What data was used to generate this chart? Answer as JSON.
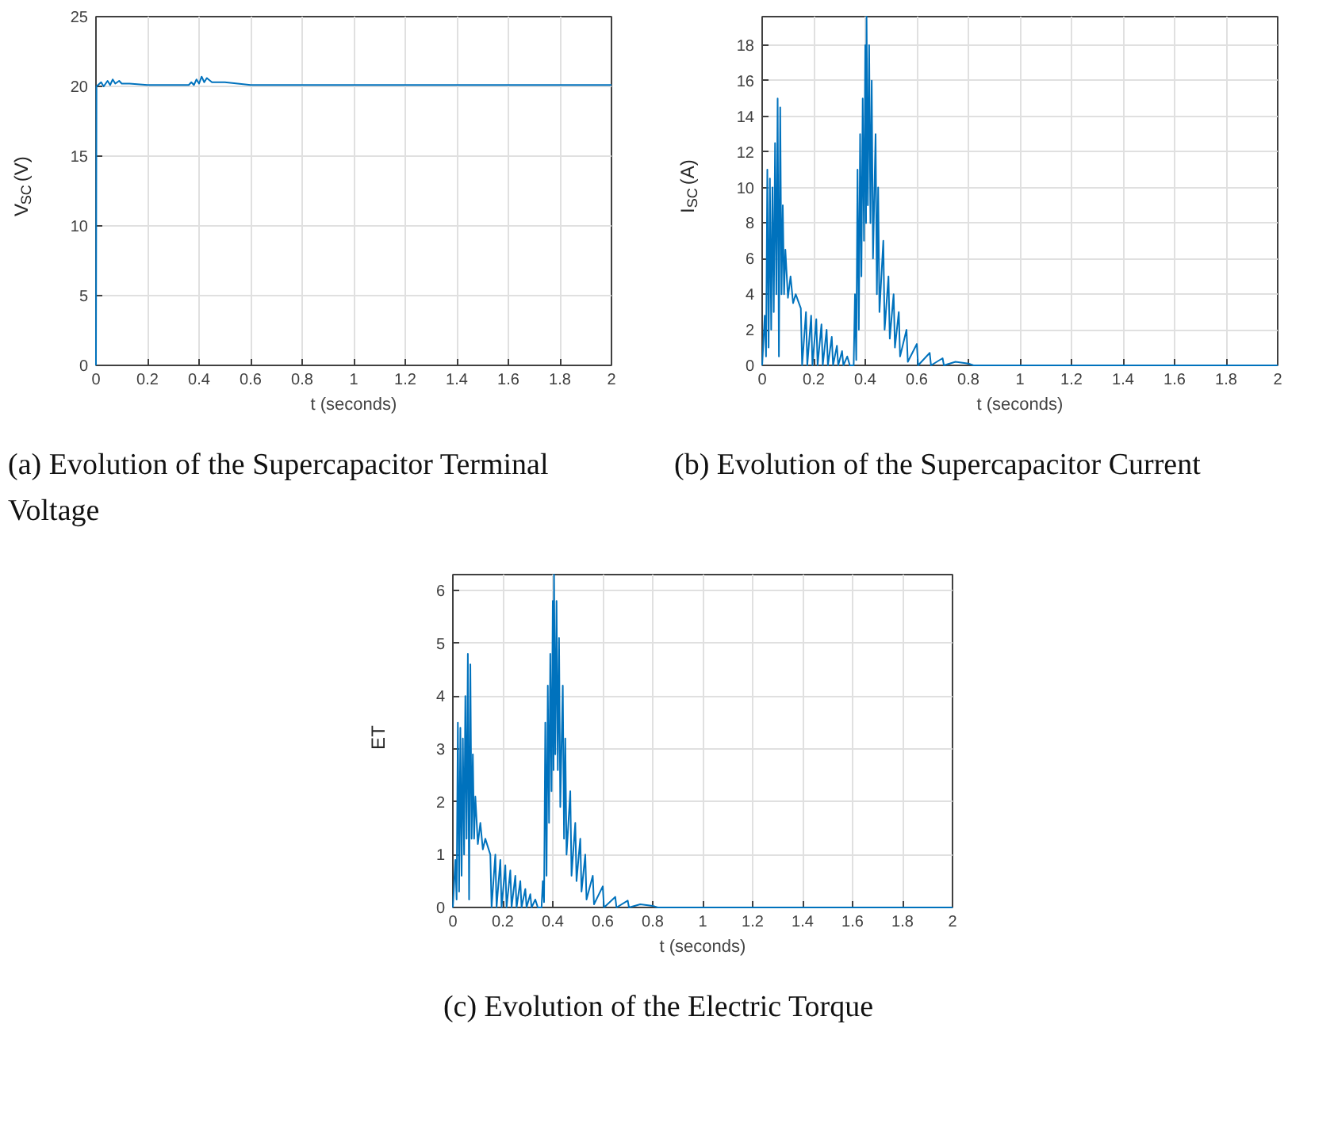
{
  "chart_data": [
    {
      "type": "line",
      "xlabel": "t (seconds)",
      "ylabel": "V$_{SC}$ (V)",
      "annotations": [
        "(a) Evolution of the Supercapacitor Terminal Voltage"
      ],
      "xlim": [
        0,
        2
      ],
      "ylim": [
        0,
        25
      ],
      "xticks": [
        0,
        0.2,
        0.4,
        0.6,
        0.8,
        1,
        1.2,
        1.4,
        1.6,
        1.8,
        2
      ],
      "yticks": [
        0,
        5,
        10,
        15,
        20,
        25
      ],
      "grid": true,
      "series": [
        {
          "color": "#0072bd",
          "x": [
            0,
            0.002,
            0.02,
            0.03,
            0.045,
            0.055,
            0.065,
            0.075,
            0.09,
            0.1,
            0.13,
            0.2,
            0.36,
            0.37,
            0.38,
            0.39,
            0.4,
            0.41,
            0.42,
            0.43,
            0.45,
            0.5,
            0.6,
            2
          ],
          "values": [
            0,
            20,
            20.3,
            20.0,
            20.4,
            20.1,
            20.5,
            20.2,
            20.4,
            20.2,
            20.2,
            20.1,
            20.1,
            20.3,
            20.1,
            20.5,
            20.2,
            20.7,
            20.3,
            20.6,
            20.3,
            20.3,
            20.1,
            20.1
          ]
        }
      ]
    },
    {
      "type": "line",
      "xlabel": "t (seconds)",
      "ylabel": "I$_{SC}$ (A)",
      "annotations": [
        "(b) Evolution of the Supercapacitor Current"
      ],
      "xlim": [
        0,
        2
      ],
      "ylim": [
        0,
        19.6
      ],
      "xticks": [
        0,
        0.2,
        0.4,
        0.6,
        0.8,
        1,
        1.2,
        1.4,
        1.6,
        1.8,
        2
      ],
      "yticks": [
        0,
        2,
        4,
        6,
        8,
        10,
        12,
        14,
        16,
        18
      ],
      "grid": true,
      "series": [
        {
          "color": "#0072bd",
          "x": [
            0,
            0.01,
            0.015,
            0.02,
            0.025,
            0.03,
            0.035,
            0.04,
            0.045,
            0.05,
            0.055,
            0.06,
            0.065,
            0.07,
            0.075,
            0.08,
            0.085,
            0.09,
            0.1,
            0.11,
            0.12,
            0.13,
            0.15,
            0.155,
            0.17,
            0.175,
            0.19,
            0.195,
            0.21,
            0.215,
            0.23,
            0.235,
            0.25,
            0.255,
            0.27,
            0.275,
            0.29,
            0.295,
            0.31,
            0.315,
            0.33,
            0.34,
            0.355,
            0.36,
            0.365,
            0.37,
            0.375,
            0.38,
            0.385,
            0.39,
            0.395,
            0.4,
            0.403,
            0.405,
            0.41,
            0.415,
            0.42,
            0.425,
            0.43,
            0.44,
            0.445,
            0.45,
            0.455,
            0.47,
            0.475,
            0.49,
            0.495,
            0.51,
            0.515,
            0.53,
            0.535,
            0.56,
            0.565,
            0.6,
            0.605,
            0.65,
            0.655,
            0.7,
            0.705,
            0.75,
            0.8,
            0.82,
            2
          ],
          "values": [
            0,
            2.8,
            0.5,
            11,
            1,
            10.5,
            2,
            10,
            3,
            12.5,
            4,
            15,
            0.5,
            14.5,
            4,
            9,
            4,
            6.5,
            3.8,
            5,
            3.5,
            4,
            3.2,
            0,
            3,
            0,
            2.8,
            0,
            2.6,
            0,
            2.3,
            0,
            2,
            0,
            1.6,
            0,
            1.1,
            0,
            0.8,
            0,
            0.5,
            0,
            0,
            4,
            0.3,
            11,
            2,
            13,
            5,
            15,
            7,
            18,
            8,
            19.6,
            9,
            18,
            8,
            16,
            6,
            13,
            4,
            10,
            3,
            7,
            2,
            5,
            1.5,
            4,
            1,
            3,
            0.5,
            2,
            0.2,
            1.2,
            0,
            0.7,
            0,
            0.4,
            0,
            0.2,
            0.1,
            0,
            0
          ]
        }
      ]
    },
    {
      "type": "line",
      "xlabel": "t (seconds)",
      "ylabel": "ET",
      "annotations": [
        "(c) Evolution of the Electric Torque"
      ],
      "xlim": [
        0,
        2
      ],
      "ylim": [
        0,
        6.3
      ],
      "xticks": [
        0,
        0.2,
        0.4,
        0.6,
        0.8,
        1,
        1.2,
        1.4,
        1.6,
        1.8,
        2
      ],
      "yticks": [
        0,
        1,
        2,
        3,
        4,
        5,
        6
      ],
      "grid": true,
      "series": [
        {
          "color": "#0072bd",
          "x": [
            0,
            0.01,
            0.015,
            0.02,
            0.025,
            0.03,
            0.035,
            0.04,
            0.045,
            0.05,
            0.055,
            0.06,
            0.065,
            0.07,
            0.075,
            0.08,
            0.085,
            0.09,
            0.1,
            0.11,
            0.12,
            0.13,
            0.15,
            0.155,
            0.17,
            0.175,
            0.19,
            0.195,
            0.21,
            0.215,
            0.23,
            0.235,
            0.25,
            0.255,
            0.27,
            0.275,
            0.29,
            0.295,
            0.31,
            0.315,
            0.33,
            0.34,
            0.355,
            0.36,
            0.365,
            0.37,
            0.375,
            0.38,
            0.385,
            0.39,
            0.395,
            0.4,
            0.403,
            0.405,
            0.41,
            0.415,
            0.42,
            0.425,
            0.43,
            0.44,
            0.445,
            0.45,
            0.455,
            0.47,
            0.475,
            0.49,
            0.495,
            0.51,
            0.515,
            0.53,
            0.535,
            0.56,
            0.565,
            0.6,
            0.605,
            0.65,
            0.655,
            0.7,
            0.705,
            0.75,
            0.8,
            0.82,
            2
          ],
          "values": [
            0,
            0.9,
            0.15,
            3.5,
            0.3,
            3.4,
            0.6,
            3.2,
            1,
            4,
            1.3,
            4.8,
            0.15,
            4.6,
            1.3,
            2.9,
            1.3,
            2.1,
            1.2,
            1.6,
            1.1,
            1.3,
            1.0,
            0,
            1.0,
            0,
            0.9,
            0,
            0.8,
            0,
            0.7,
            0,
            0.6,
            0,
            0.5,
            0,
            0.35,
            0,
            0.25,
            0,
            0.15,
            0,
            0,
            0.5,
            0.1,
            3.5,
            0.6,
            4.2,
            1.6,
            4.8,
            2.2,
            5.8,
            2.6,
            6.3,
            2.9,
            5.8,
            2.6,
            5.1,
            1.9,
            4.2,
            1.3,
            3.2,
            1,
            2.2,
            0.6,
            1.6,
            0.5,
            1.3,
            0.3,
            1,
            0.15,
            0.6,
            0.06,
            0.4,
            0,
            0.2,
            0,
            0.13,
            0,
            0.06,
            0.03,
            0,
            0
          ]
        }
      ]
    }
  ]
}
